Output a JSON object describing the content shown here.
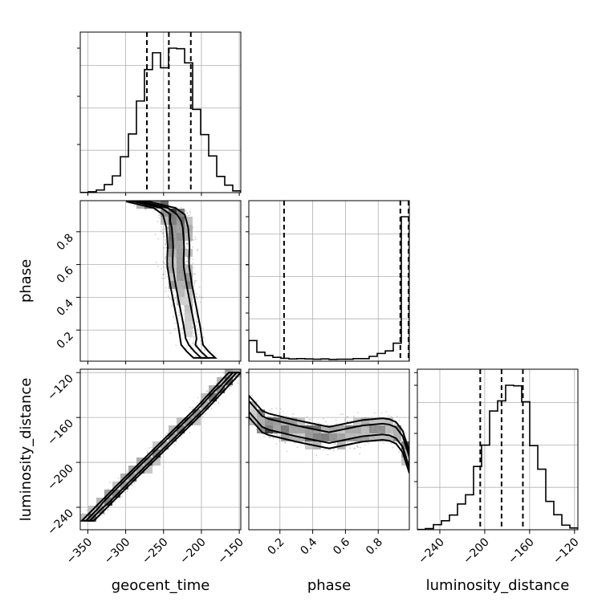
{
  "chart_data": {
    "type": "corner",
    "parameters": [
      "geocent_time",
      "phase",
      "luminosity_distance"
    ],
    "grid": true,
    "axes": {
      "geocent_time": {
        "label": "geocent_time",
        "range": [
          -360,
          -148
        ],
        "ticks": [
          -350,
          -300,
          -250,
          -200,
          -150
        ],
        "tick_labels": [
          "−350",
          "−300",
          "−250",
          "−200",
          "−150"
        ]
      },
      "phase": {
        "label": "phase",
        "range": [
          0.01,
          0.99
        ],
        "ticks": [
          0.2,
          0.4,
          0.6,
          0.8
        ],
        "tick_labels": [
          "0.2",
          "0.4",
          "0.6",
          "0.8"
        ]
      },
      "luminosity_distance": {
        "label": "luminosity_distance",
        "range": [
          -260,
          -117
        ],
        "ticks": [
          -240,
          -200,
          -160,
          -120
        ],
        "tick_labels": [
          "−240",
          "−200",
          "−160",
          "−120"
        ]
      }
    },
    "histograms": {
      "geocent_time": {
        "edges": [
          -360,
          -349.4,
          -338.8,
          -328.2,
          -317.6,
          -307,
          -296.4,
          -285.8,
          -275.2,
          -264.6,
          -254,
          -243.4,
          -232.8,
          -222.2,
          -211.6,
          -201,
          -190.4,
          -179.8,
          -169.2,
          -158.6,
          -148
        ],
        "counts": [
          0.001,
          0.006,
          0.018,
          0.056,
          0.116,
          0.248,
          0.406,
          0.634,
          0.852,
          0.968,
          0.864,
          1.0,
          0.996,
          0.898,
          0.576,
          0.402,
          0.254,
          0.112,
          0.052,
          0.012
        ],
        "quantiles": [
          -272,
          -243,
          -214
        ]
      },
      "phase": {
        "edges": [
          0.01,
          0.059,
          0.108,
          0.157,
          0.206,
          0.255,
          0.304,
          0.353,
          0.402,
          0.451,
          0.5,
          0.549,
          0.598,
          0.647,
          0.696,
          0.745,
          0.794,
          0.843,
          0.892,
          0.941,
          0.99
        ],
        "counts": [
          0.128,
          0.056,
          0.035,
          0.024,
          0.018,
          0.014,
          0.016,
          0.014,
          0.012,
          0.014,
          0.011,
          0.012,
          0.012,
          0.016,
          0.016,
          0.03,
          0.048,
          0.064,
          0.112,
          0.898
        ],
        "quantiles": [
          0.225,
          0.935,
          0.985
        ]
      },
      "luminosity_distance": {
        "edges": [
          -260,
          -252.85,
          -245.7,
          -238.55,
          -231.4,
          -224.25,
          -217.1,
          -209.95,
          -202.8,
          -195.65,
          -188.5,
          -181.35,
          -174.2,
          -167.05,
          -159.9,
          -152.75,
          -145.6,
          -138.45,
          -131.3,
          -124.15,
          -117
        ],
        "counts": [
          0.002,
          0.008,
          0.035,
          0.062,
          0.102,
          0.178,
          0.242,
          0.438,
          0.586,
          0.822,
          0.892,
          1.0,
          0.996,
          0.886,
          0.582,
          0.419,
          0.196,
          0.104,
          0.032,
          0.012
        ],
        "quantiles": [
          -204,
          -185,
          -166
        ]
      }
    },
    "joint": [
      {
        "x": "geocent_time",
        "y": "phase",
        "trend": [
          [
            -285,
            0.985
          ],
          [
            -262,
            0.965
          ],
          [
            -238,
            0.93
          ],
          [
            -232,
            0.83
          ],
          [
            -230,
            0.72
          ],
          [
            -231,
            0.6
          ],
          [
            -227,
            0.48
          ],
          [
            -222,
            0.36
          ],
          [
            -216,
            0.22
          ],
          [
            -212,
            0.1
          ],
          [
            -196,
            0.03
          ]
        ],
        "spread_x": 9
      },
      {
        "x": "geocent_time",
        "y": "luminosity_distance",
        "trend": [
          [
            -350,
            -252
          ],
          [
            -300,
            -218
          ],
          [
            -250,
            -185
          ],
          [
            -200,
            -152
          ],
          [
            -156,
            -120
          ]
        ],
        "spread_x": 5
      },
      {
        "x": "phase",
        "y": "luminosity_distance",
        "trend": [
          [
            0.01,
            -150
          ],
          [
            0.1,
            -165
          ],
          [
            0.3,
            -172
          ],
          [
            0.5,
            -178
          ],
          [
            0.7,
            -172
          ],
          [
            0.85,
            -170
          ],
          [
            0.93,
            -175
          ],
          [
            0.96,
            -185
          ],
          [
            0.99,
            -200
          ]
        ],
        "spread_y": 6
      }
    ]
  }
}
